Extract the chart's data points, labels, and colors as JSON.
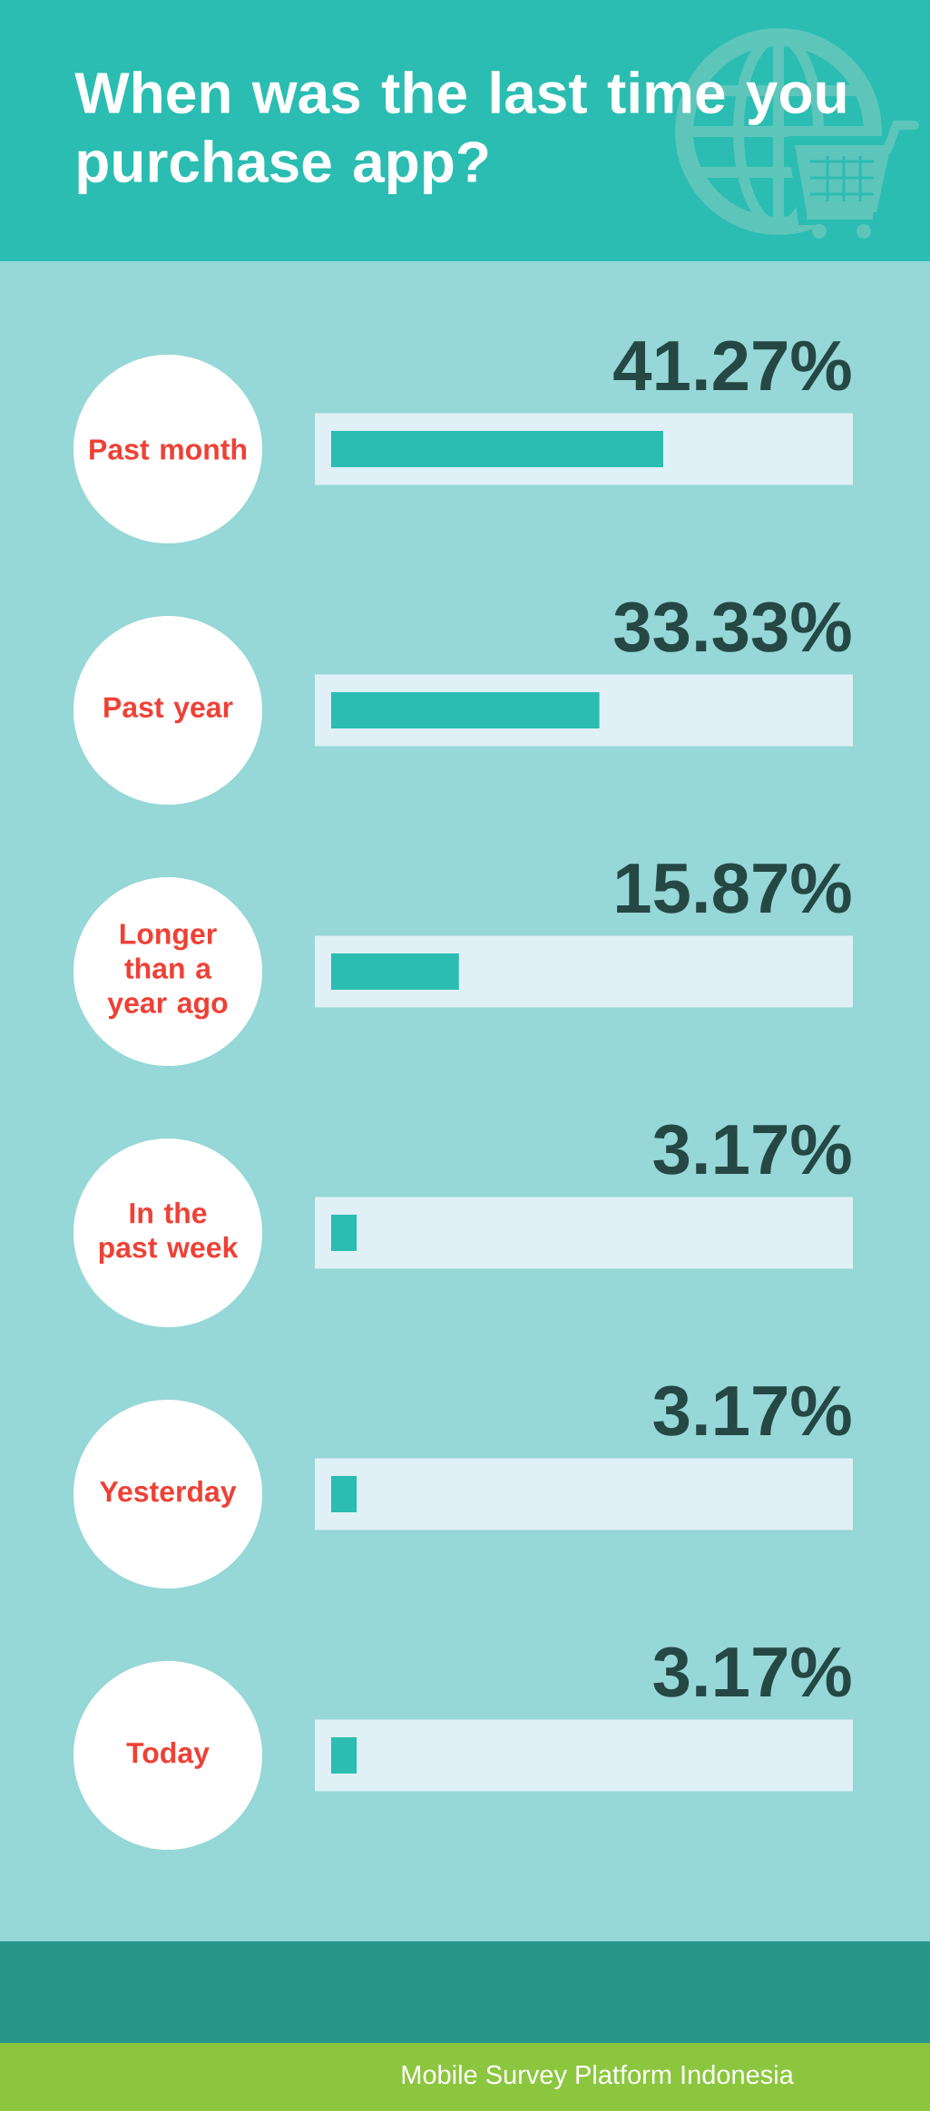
{
  "chart_data": {
    "type": "bar",
    "orientation": "horizontal",
    "title": "When was the last time you purchase app?",
    "categories": [
      "Past month",
      "Past year",
      "Longer than a year ago",
      "In the past week",
      "Yesterday",
      "Today"
    ],
    "values": [
      41.27,
      33.33,
      15.87,
      3.17,
      3.17,
      3.17
    ],
    "value_labels": [
      "41.27%",
      "33.33%",
      "15.87%",
      "3.17%",
      "3.17%",
      "3.17%"
    ],
    "color": "#2bbdb1",
    "tick_labels": "y",
    "annotations": [
      "Mobile Survey Platform Indonesia"
    ]
  }
}
